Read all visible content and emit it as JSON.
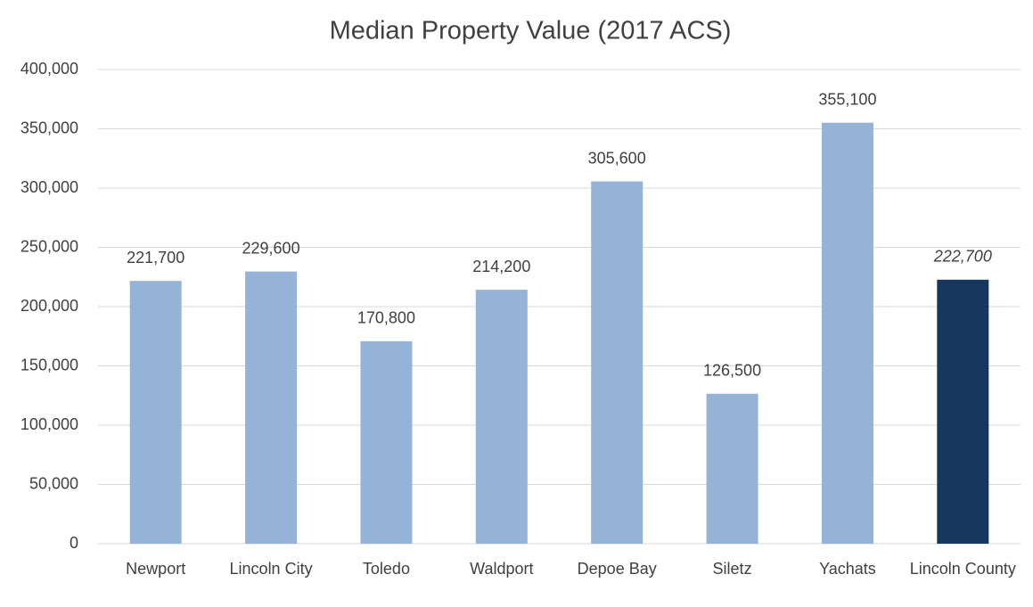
{
  "chart_data": {
    "type": "bar",
    "title": "Median Property Value (2017 ACS)",
    "categories": [
      "Newport",
      "Lincoln City",
      "Toledo",
      "Waldport",
      "Depoe Bay",
      "Siletz",
      "Yachats",
      "Lincoln County"
    ],
    "values": [
      221700,
      229600,
      170800,
      214200,
      305600,
      126500,
      355100,
      222700
    ],
    "value_labels": [
      "221,700",
      "229,600",
      "170,800",
      "214,200",
      "305,600",
      "126,500",
      "355,100",
      "222,700"
    ],
    "colors": [
      "#95b3d7",
      "#95b3d7",
      "#95b3d7",
      "#95b3d7",
      "#95b3d7",
      "#95b3d7",
      "#95b3d7",
      "#17375e"
    ],
    "ylim": [
      0,
      400000
    ],
    "yticks": [
      0,
      {
        "value": 50000,
        "label": "50,000"
      },
      {
        "value": 100000,
        "label": "100,000"
      },
      {
        "value": 150000,
        "label": "150,000"
      },
      {
        "value": 200000,
        "label": "200,000"
      },
      {
        "value": 250000,
        "label": "250,000"
      },
      {
        "value": 300000,
        "label": "300,000"
      },
      {
        "value": 350000,
        "label": "350,000"
      },
      {
        "value": 400000,
        "label": "400,000"
      }
    ],
    "grid": true
  }
}
